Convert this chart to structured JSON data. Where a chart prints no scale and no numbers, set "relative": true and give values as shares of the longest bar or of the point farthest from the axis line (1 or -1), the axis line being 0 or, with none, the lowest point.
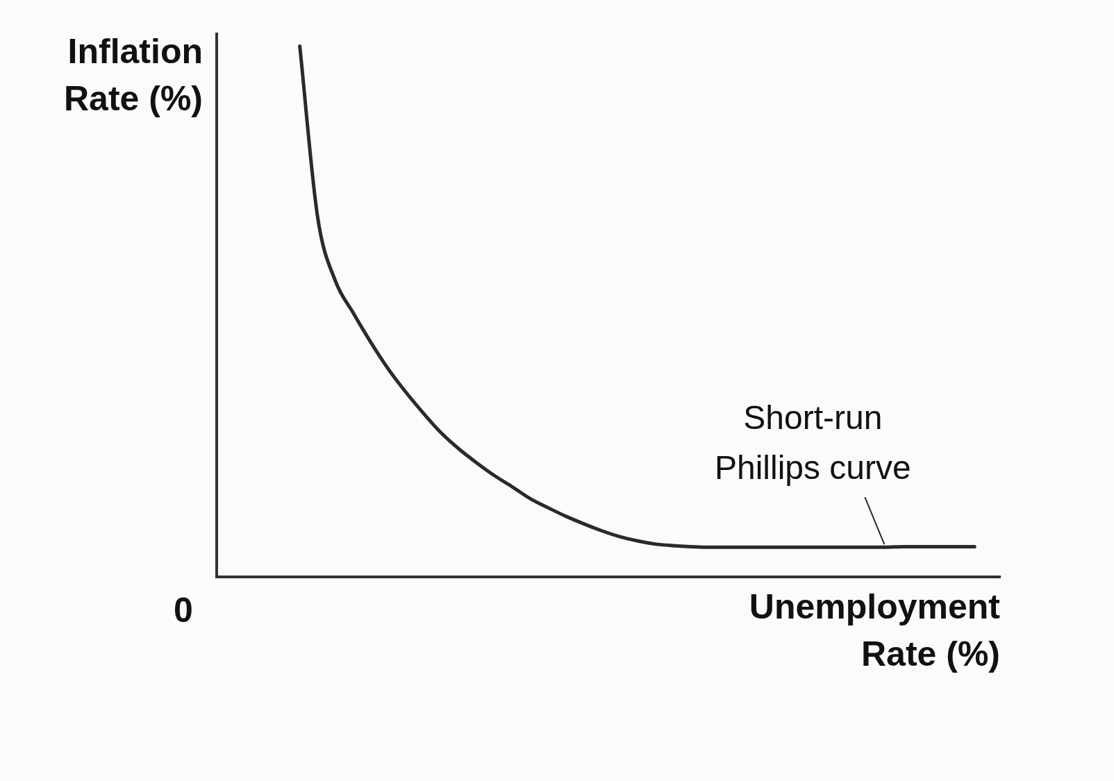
{
  "chart_data": {
    "type": "line",
    "relative": true,
    "ylabel": "Inflation Rate (%)",
    "xlabel": "Unemployment Rate (%)",
    "annotations": [
      "0"
    ],
    "grid": false,
    "legend": false,
    "marker": "none",
    "line_style": "solid",
    "categories": [
      null,
      null,
      null,
      null,
      null,
      null,
      null,
      null,
      null,
      null,
      null,
      null,
      null,
      null,
      null,
      null,
      null,
      null,
      null,
      null,
      null,
      null,
      null,
      null,
      null,
      null,
      null,
      null,
      null,
      null,
      null,
      null,
      null,
      null,
      null,
      null,
      null,
      null,
      null
    ],
    "series": [
      {
        "name": "Short-run Phillips curve",
        "color": "#2a2a2a",
        "values": [
          1.0,
          0.679,
          0.558,
          0.498,
          0.442,
          0.391,
          0.347,
          0.307,
          0.27,
          0.24,
          0.214,
          0.19,
          0.169,
          0.147,
          0.13,
          0.114,
          0.1,
          0.087,
          0.076,
          0.068,
          0.062,
          0.059,
          0.057,
          0.056,
          0.056,
          0.056,
          0.056,
          0.056,
          0.056,
          0.056,
          0.056,
          0.056,
          0.056,
          0.056,
          0.057,
          0.057,
          0.057,
          0.057,
          0.057
        ]
      }
    ]
  }
}
